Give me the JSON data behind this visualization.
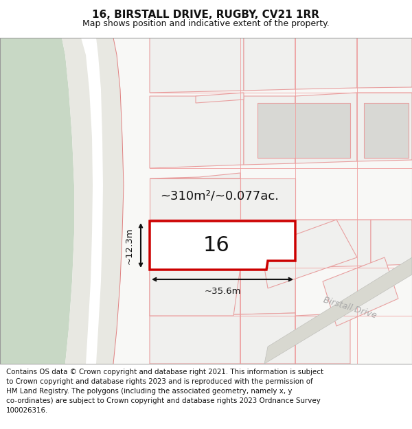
{
  "title_line1": "16, BIRSTALL DRIVE, RUGBY, CV21 1RR",
  "title_line2": "Map shows position and indicative extent of the property.",
  "footer_text": "Contains OS data © Crown copyright and database right 2021. This information is subject\nto Crown copyright and database rights 2023 and is reproduced with the permission of\nHM Land Registry. The polygons (including the associated geometry, namely x, y\nco-ordinates) are subject to Crown copyright and database rights 2023 Ordnance Survey\n100026316.",
  "area_label": "~310m²/~0.077ac.",
  "width_label": "~35.6m",
  "height_label": "~12.3m",
  "number_label": "16",
  "map_bg": "#f5f5f2",
  "green_color": "#c8d8c5",
  "road_fill": "#e8e8e2",
  "road_stripe": "#ffffff",
  "plot_fill": "#ffffff",
  "plot_border": "#e8504040",
  "main_border": "#cc0000",
  "surr_fill": "#f0f0ee",
  "surr_gray_fill": "#d8d8d4",
  "surr_border": "#e8a0a0",
  "birstall_fill": "#d8d8d0",
  "birstall_text": "#aaaaaa",
  "text_color": "#111111",
  "title_fs": 11,
  "sub_fs": 9,
  "footer_fs": 7.4,
  "area_fs": 13,
  "num_fs": 22,
  "dim_fs": 9.5
}
